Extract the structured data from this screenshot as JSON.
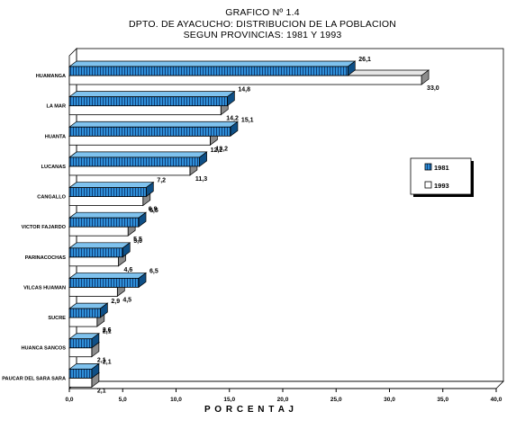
{
  "header": {
    "title": "GRAFICO Nº 1.4",
    "subtitle_1": "DPTO. DE AYACUCHO: DISTRIBUCION DE LA POBLACION",
    "subtitle_2": "SEGUN PROVINCIAS: 1981 Y 1993"
  },
  "chart_data": {
    "type": "bar",
    "orientation": "horizontal",
    "title": "GRAFICO Nº 1.4",
    "subtitle": "DPTO. DE AYACUCHO: DISTRIBUCION DE LA POBLACION SEGUN PROVINCIAS: 1981 Y 1993",
    "xlabel": "P O R C E N T A J",
    "ylabel": "",
    "xlim": [
      0,
      40
    ],
    "xticks": [
      0,
      5,
      10,
      15,
      20,
      25,
      30,
      35,
      40
    ],
    "xtick_labels": [
      "0,0",
      "5,0",
      "10,0",
      "15,0",
      "20,0",
      "25,0",
      "30,0",
      "35,0",
      "40,0"
    ],
    "grid": false,
    "legend_position": "right",
    "categories": [
      "HUAMANGA",
      "LA MAR",
      "HUANTA",
      "LUCANAS",
      "CANGALLO",
      "VICTOR FAJARDO",
      "PARINACOCHAS",
      "VILCAS HUAMAN",
      "SUCRE",
      "HUANCA SANCOS",
      "PAUCAR DEL SARA SARA"
    ],
    "series": [
      {
        "name": "1981",
        "color": "#2f8fd8",
        "pattern": "vertical-stripes",
        "values": [
          26.1,
          14.8,
          15.1,
          12.2,
          7.2,
          6.5,
          5.0,
          6.5,
          2.9,
          2.1,
          2.1
        ],
        "labels": [
          "26,1",
          "14,8",
          "15,1",
          "12,2",
          "7,2",
          "6,5",
          "5,0",
          "6,5",
          "2,9",
          "2,1",
          "2,1"
        ]
      },
      {
        "name": "1993",
        "color": "#ffffff",
        "pattern": "solid",
        "values": [
          33.0,
          14.2,
          13.2,
          11.3,
          6.9,
          5.5,
          4.6,
          4.5,
          2.6,
          2.1,
          2.1
        ],
        "labels": [
          "33,0",
          "14,2",
          "13,2",
          "11,3",
          "6,9",
          "5,5",
          "4,6",
          "4,5",
          "2,6",
          "2,1",
          "2,1"
        ]
      }
    ]
  }
}
